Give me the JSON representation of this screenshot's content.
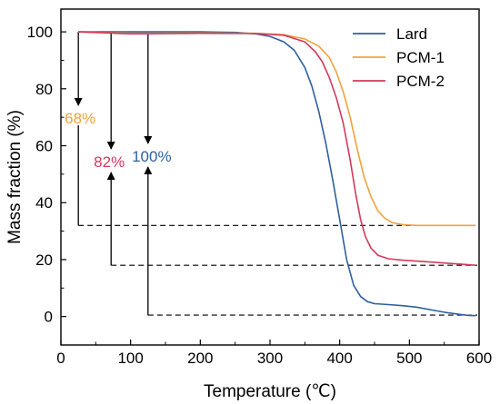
{
  "chart_data": {
    "type": "line",
    "title": "",
    "xlabel": "Temperature (℃)",
    "ylabel": "Mass fraction (%)",
    "xlim": [
      0,
      600
    ],
    "ylim": [
      -10,
      108
    ],
    "x_ticks": [
      0,
      100,
      200,
      300,
      400,
      500,
      600
    ],
    "y_ticks": [
      0,
      20,
      40,
      60,
      80,
      100
    ],
    "grid": false,
    "legend_position": "top-right",
    "series": [
      {
        "name": "Lard",
        "color": "#2f5f9e",
        "points": [
          [
            25,
            100
          ],
          [
            100,
            100
          ],
          [
            200,
            100
          ],
          [
            250,
            99.8
          ],
          [
            280,
            99.3
          ],
          [
            300,
            98.4
          ],
          [
            320,
            96.5
          ],
          [
            335,
            93.5
          ],
          [
            350,
            87.5
          ],
          [
            360,
            81
          ],
          [
            370,
            72
          ],
          [
            380,
            61
          ],
          [
            390,
            48
          ],
          [
            400,
            34
          ],
          [
            410,
            20
          ],
          [
            420,
            11
          ],
          [
            430,
            7
          ],
          [
            440,
            5.2
          ],
          [
            450,
            4.5
          ],
          [
            470,
            4.2
          ],
          [
            490,
            3.8
          ],
          [
            510,
            3.3
          ],
          [
            530,
            2.4
          ],
          [
            550,
            1.5
          ],
          [
            570,
            0.8
          ],
          [
            585,
            0.4
          ],
          [
            595,
            0.3
          ]
        ]
      },
      {
        "name": "PCM-1",
        "color": "#f0a23c",
        "points": [
          [
            25,
            100
          ],
          [
            100,
            99.5
          ],
          [
            200,
            99.6
          ],
          [
            280,
            99.5
          ],
          [
            320,
            99
          ],
          [
            350,
            97.5
          ],
          [
            370,
            95
          ],
          [
            385,
            91
          ],
          [
            395,
            86
          ],
          [
            405,
            79
          ],
          [
            415,
            70
          ],
          [
            425,
            59
          ],
          [
            435,
            49
          ],
          [
            445,
            42
          ],
          [
            455,
            37
          ],
          [
            465,
            34.5
          ],
          [
            475,
            33
          ],
          [
            490,
            32.3
          ],
          [
            510,
            32
          ],
          [
            560,
            32
          ],
          [
            595,
            32
          ]
        ]
      },
      {
        "name": "PCM-2",
        "color": "#d4395b",
        "points": [
          [
            25,
            100
          ],
          [
            100,
            99.3
          ],
          [
            200,
            99.5
          ],
          [
            280,
            99.4
          ],
          [
            320,
            98.8
          ],
          [
            350,
            96.5
          ],
          [
            365,
            93
          ],
          [
            375,
            89.5
          ],
          [
            385,
            84
          ],
          [
            395,
            77
          ],
          [
            405,
            68
          ],
          [
            415,
            55
          ],
          [
            423,
            43
          ],
          [
            430,
            34
          ],
          [
            437,
            28
          ],
          [
            445,
            24
          ],
          [
            455,
            21.5
          ],
          [
            470,
            20.3
          ],
          [
            490,
            19.8
          ],
          [
            520,
            19.3
          ],
          [
            550,
            18.8
          ],
          [
            580,
            18.3
          ],
          [
            595,
            18
          ]
        ]
      }
    ],
    "legend": [
      "Lard",
      "PCM-1",
      "PCM-2"
    ],
    "annotations": [
      {
        "text": "68%",
        "color": "#f0a23c",
        "arrow_x": 25,
        "level_from": 100,
        "level_to": 32
      },
      {
        "text": "82%",
        "color": "#d4395b",
        "arrow_x": 72,
        "level_from": 100,
        "level_to": 18
      },
      {
        "text": "100%",
        "color": "#2f5f9e",
        "arrow_x": 125,
        "level_from": 100,
        "level_to": 0.5
      }
    ]
  }
}
